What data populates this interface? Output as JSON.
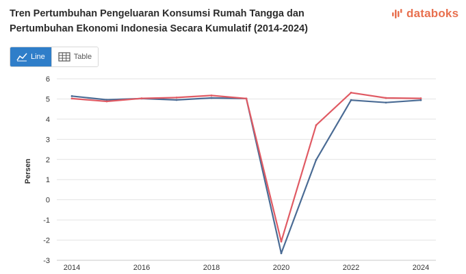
{
  "header": {
    "title": "Tren Pertumbuhan Pengeluaran Konsumsi Rumah Tangga dan Pertumbuhan Ekonomi Indonesia Secara Kumulatif (2014-2024)",
    "logo_text": "databoks",
    "logo_icon": "databoks-logo-icon"
  },
  "toggle": {
    "line_label": "Line",
    "table_label": "Table",
    "active": "line"
  },
  "colors": {
    "accent": "#2f7ec9",
    "logo": "#e8704f",
    "series_blue": "#4a6b94",
    "series_red": "#e05a63"
  },
  "chart_data": {
    "type": "line",
    "title": "",
    "xlabel": "",
    "ylabel": "Persen",
    "x": [
      2014,
      2015,
      2016,
      2017,
      2018,
      2019,
      2020,
      2021,
      2022,
      2023,
      2024
    ],
    "xticks": [
      2014,
      2016,
      2018,
      2020,
      2022,
      2024
    ],
    "ylim": [
      -3,
      6
    ],
    "yticks": [
      -3,
      -2,
      -1,
      0,
      1,
      2,
      3,
      4,
      5,
      6
    ],
    "grid": "horizontal",
    "legend": "none",
    "series": [
      {
        "name": "",
        "color": "#4a6b94",
        "values": [
          5.14,
          4.96,
          5.02,
          4.95,
          5.05,
          5.02,
          -2.65,
          1.98,
          4.94,
          4.82,
          4.94
        ]
      },
      {
        "name": "",
        "color": "#e05a63",
        "values": [
          5.02,
          4.88,
          5.03,
          5.07,
          5.17,
          5.02,
          -2.07,
          3.7,
          5.31,
          5.05,
          5.03
        ]
      }
    ]
  }
}
